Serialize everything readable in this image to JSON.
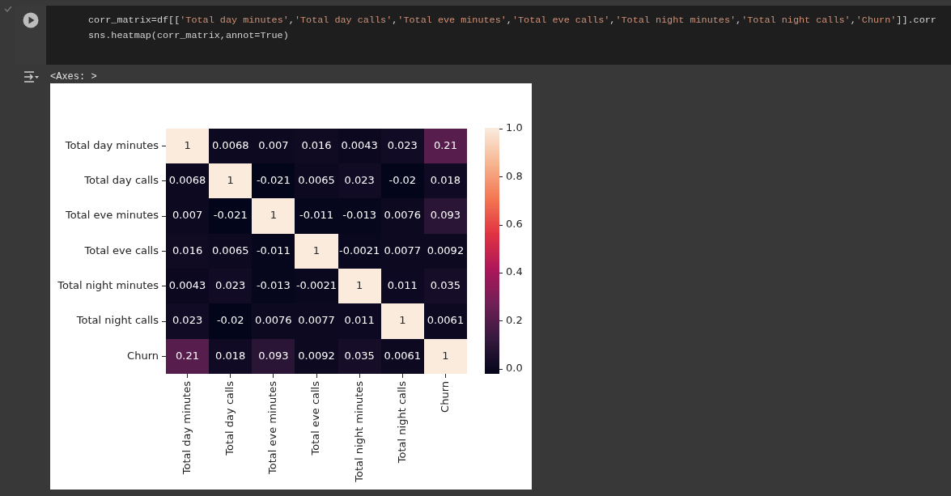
{
  "chart_data": {
    "type": "heatmap",
    "categories": [
      "Total day minutes",
      "Total day calls",
      "Total eve minutes",
      "Total eve calls",
      "Total night minutes",
      "Total night calls",
      "Churn"
    ],
    "y_categories": [
      "Total day minutes",
      "Total day calls",
      "Total eve minutes",
      "Total eve calls",
      "Total night minutes",
      "Total night calls",
      "Churn"
    ],
    "cells": [
      [
        1,
        0.0068,
        0.007,
        0.016,
        0.0043,
        0.023,
        0.21
      ],
      [
        0.0068,
        1,
        -0.021,
        0.0065,
        0.023,
        -0.02,
        0.018
      ],
      [
        0.007,
        -0.021,
        1,
        -0.011,
        -0.013,
        0.0076,
        0.093
      ],
      [
        0.016,
        0.0065,
        -0.011,
        1,
        -0.0021,
        0.0077,
        0.0092
      ],
      [
        0.0043,
        0.023,
        -0.013,
        -0.0021,
        1,
        0.011,
        0.035
      ],
      [
        0.023,
        -0.02,
        0.0076,
        0.0077,
        0.011,
        1,
        0.0061
      ],
      [
        0.21,
        0.018,
        0.093,
        0.0092,
        0.035,
        0.0061,
        1
      ]
    ],
    "clim": [
      -0.021,
      1
    ],
    "cticks": [
      {
        "value": 0,
        "label": "0.0"
      },
      0.2,
      0.4,
      0.6,
      0.8,
      {
        "value": 1,
        "label": "1.0"
      }
    ],
    "data_labels": true,
    "annotations": [
      "corr_matrix=df[['Total day minutes','Total day calls','Total eve minutes','Total eve calls','Total night minutes','Total night calls','Churn']].corr",
      "sns.heatmap(corr_matrix,annot=True)",
      "<Axes: >"
    ]
  }
}
